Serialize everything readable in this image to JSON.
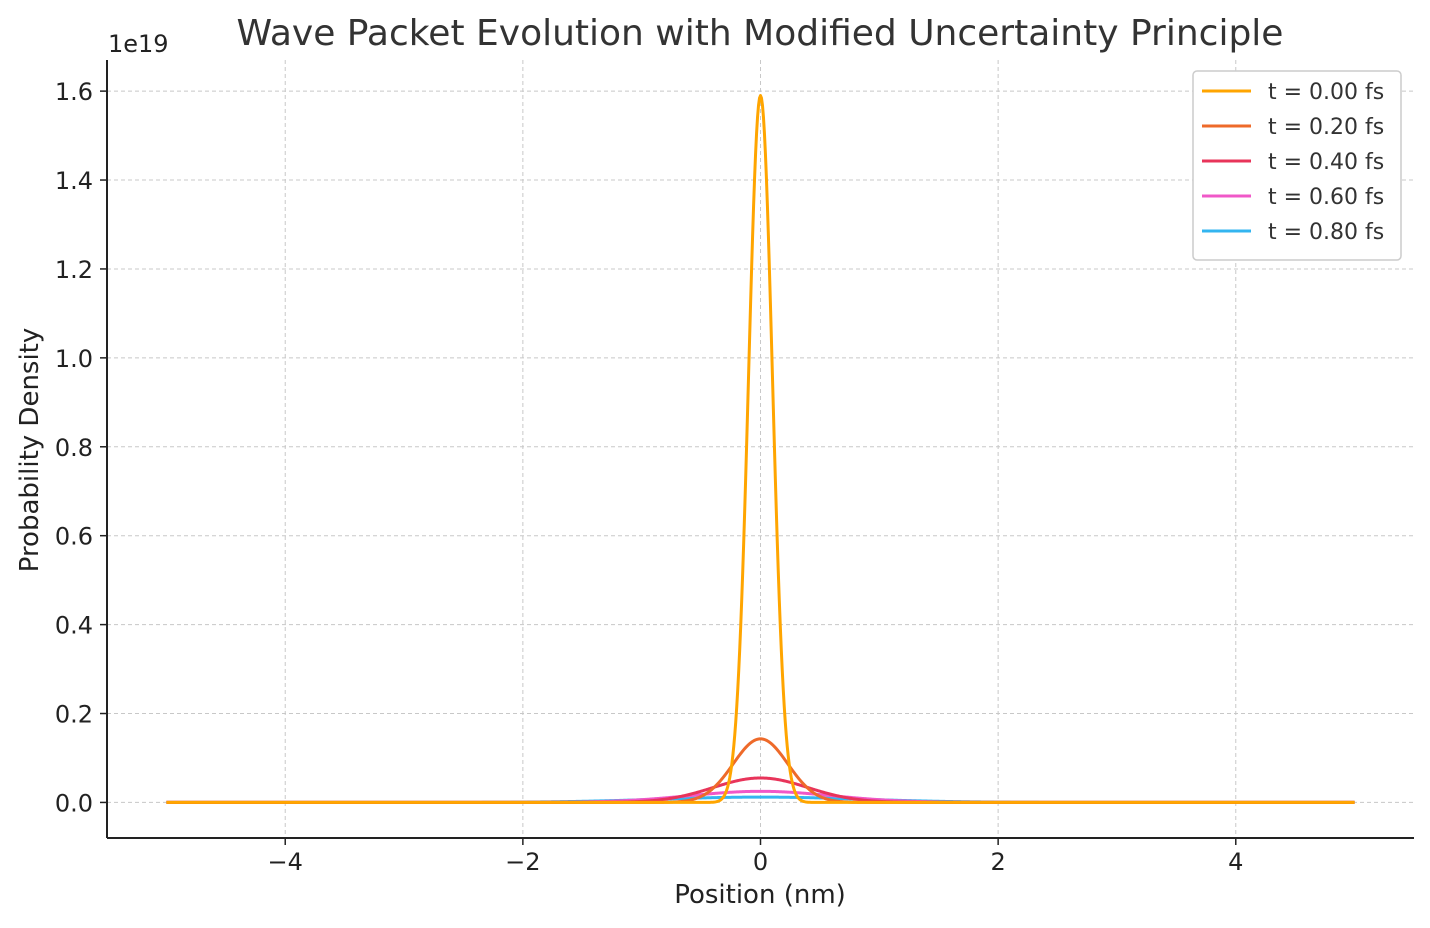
{
  "chart_data": {
    "type": "line",
    "title": "Wave Packet Evolution with Modified Uncertainty Principle",
    "xlabel": "Position (nm)",
    "ylabel": "Probability Density",
    "y_offset_label": "1e19",
    "xlim": [
      -5.5,
      5.5
    ],
    "ylim": [
      -0.08,
      1.67
    ],
    "x_range": [
      -5,
      5
    ],
    "xticks": [
      -4,
      -2,
      0,
      2,
      4
    ],
    "xtick_labels": [
      "−4",
      "−2",
      "0",
      "2",
      "4"
    ],
    "yticks": [
      0.0,
      0.2,
      0.4,
      0.6,
      0.8,
      1.0,
      1.2,
      1.4,
      1.6
    ],
    "ytick_labels": [
      "0.0",
      "0.2",
      "0.4",
      "0.6",
      "0.8",
      "1.0",
      "1.2",
      "1.4",
      "1.6"
    ],
    "grid": true,
    "legend_position": "top-right",
    "series": [
      {
        "name": "t = 0.00 fs",
        "color": "#FFA500",
        "peak": 1.59,
        "sigma": 0.1
      },
      {
        "name": "t = 0.20 fs",
        "color": "#EE6A2A",
        "peak": 0.143,
        "sigma": 0.23
      },
      {
        "name": "t = 0.40 fs",
        "color": "#E8345A",
        "peak": 0.055,
        "sigma": 0.4
      },
      {
        "name": "t = 0.60 fs",
        "color": "#F058C8",
        "peak": 0.025,
        "sigma": 0.6
      },
      {
        "name": "t = 0.80 fs",
        "color": "#33B5F0",
        "peak": 0.012,
        "sigma": 0.85
      }
    ]
  }
}
